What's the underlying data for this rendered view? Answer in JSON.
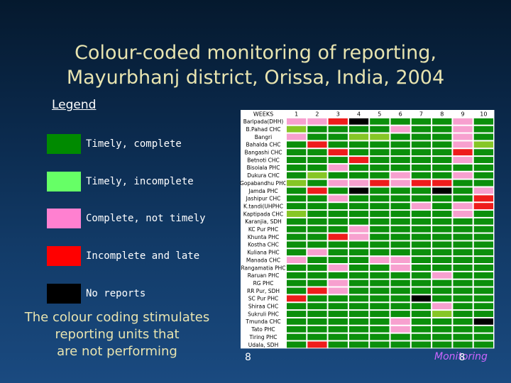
{
  "title_line1": "Colour-coded monitoring of reporting,",
  "title_line2": "Mayurbhanj district, Orissa, India, 2004",
  "legend": {
    "heading": "Legend",
    "items": [
      {
        "key": "G",
        "label": "Timely, complete",
        "color": "#008a00"
      },
      {
        "key": "L",
        "label": "Timely, incomplete",
        "color": "#66ff66"
      },
      {
        "key": "P",
        "label": "Complete, not timely",
        "color": "#ff80d0"
      },
      {
        "key": "R",
        "label": "Incomplete and late",
        "color": "#ff0000"
      },
      {
        "key": "K",
        "label": "No reports",
        "color": "#000000"
      }
    ]
  },
  "note": [
    "The colour coding stimulates",
    "reporting units that",
    "are not performing"
  ],
  "grid": {
    "corner_label": "WEEKS",
    "weeks": [
      "1",
      "2",
      "3",
      "4",
      "5",
      "6",
      "7",
      "8",
      "9",
      "10"
    ],
    "colors": {
      "G": "#0b8f0b",
      "L": "#86c626",
      "P": "#f7a0cf",
      "R": "#ee1c1c",
      "K": "#000000"
    },
    "rows": [
      {
        "name": "Baripada(DHH)",
        "cells": "PPRKGGGGPG"
      },
      {
        "name": "B.Pahad CHC",
        "cells": "LGGGGPGGPG"
      },
      {
        "name": "Bangri",
        "cells": "PGGLLGGGPG"
      },
      {
        "name": "Bahalda CHC",
        "cells": "GRGGGGGGPL"
      },
      {
        "name": "Bangashi CHC",
        "cells": "GGRGGGGGRG"
      },
      {
        "name": "Betnoti CHC",
        "cells": "GGGRGGGGPG"
      },
      {
        "name": "Bisoiala PHC",
        "cells": "GGPGGGGGGG"
      },
      {
        "name": "Dukura CHC",
        "cells": "GLGGGPGGPG"
      },
      {
        "name": "Gopabandhu PHC",
        "cells": "LGPPRPRRGG"
      },
      {
        "name": "Jamda PHC",
        "cells": "GRGKGGGKGP"
      },
      {
        "name": "Jashipur CHC",
        "cells": "GGPGGGGGGR"
      },
      {
        "name": "K.tandi(UHPHC",
        "cells": "GGGGGGPGPR"
      },
      {
        "name": "Kaptipada CHC",
        "cells": "LGGGGGGGPG"
      },
      {
        "name": "Karanjia, SDH",
        "cells": "GGGGGGGGGG"
      },
      {
        "name": "KC Pur PHC",
        "cells": "GGGPGGGGGG"
      },
      {
        "name": "Khunta PHC",
        "cells": "GGRPGGGGGG"
      },
      {
        "name": "Kostha CHC",
        "cells": "GGGGGGGGGG"
      },
      {
        "name": "Kuliana PHC",
        "cells": "GPGGGGGGGG"
      },
      {
        "name": "Manada CHC",
        "cells": "PGGGPPGGGG"
      },
      {
        "name": "Rangamatia PHC",
        "cells": "GGPGGPGGGG"
      },
      {
        "name": "Raruan PHC",
        "cells": "GGGGGGGPGG"
      },
      {
        "name": "RG PHC",
        "cells": "GGPGGGGGGG"
      },
      {
        "name": "RR Pur, SDH",
        "cells": "GRPGGGGGGG"
      },
      {
        "name": "SC Pur PHC",
        "cells": "RGGGGGKGGG"
      },
      {
        "name": "Shiraa CHC",
        "cells": "GGGGGGGPGG"
      },
      {
        "name": "Sukruli PHC",
        "cells": "GGGGGGGLGG"
      },
      {
        "name": "Tmunda CHC",
        "cells": "GGGGGPGGGK"
      },
      {
        "name": "Tato PHC",
        "cells": "GGGGGPGGGG"
      },
      {
        "name": "Tiring PHC",
        "cells": "GGGGGGGGGG"
      },
      {
        "name": "Udala, SDH",
        "cells": "GRGGGGGGGG"
      }
    ]
  },
  "page_number": "8",
  "footer_label": "Monitoring",
  "footer_number": "8"
}
